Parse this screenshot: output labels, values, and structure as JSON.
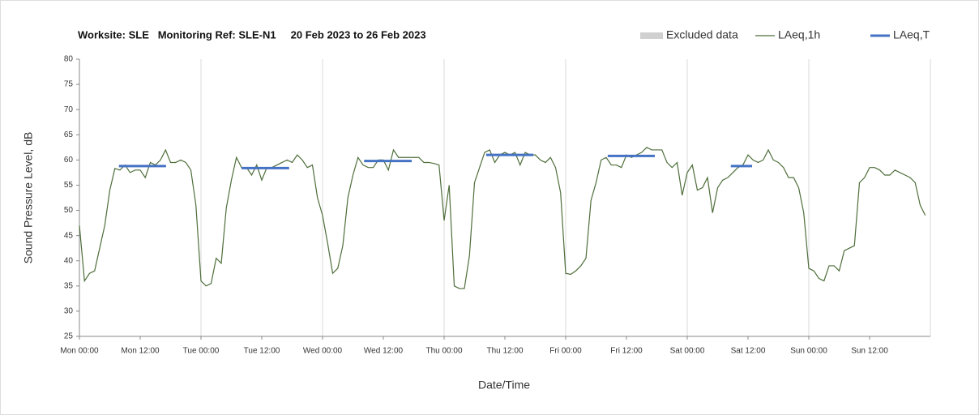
{
  "chart_data": {
    "type": "line",
    "title": "Worksite: SLE   Monitoring Ref: SLE-N1     20 Feb 2023 to 26 Feb 2023",
    "xlabel": "Date/Time",
    "ylabel": "Sound Pressure Level, dB",
    "xlim": [
      0,
      168
    ],
    "ylim": [
      25,
      80
    ],
    "yticks": [
      25,
      30,
      35,
      40,
      45,
      50,
      55,
      60,
      65,
      70,
      75,
      80
    ],
    "xticks": [
      {
        "value": 0,
        "label": "Mon 00:00"
      },
      {
        "value": 12,
        "label": "Mon 12:00"
      },
      {
        "value": 24,
        "label": "Tue 00:00"
      },
      {
        "value": 36,
        "label": "Tue 12:00"
      },
      {
        "value": 48,
        "label": "Wed 00:00"
      },
      {
        "value": 60,
        "label": "Wed 12:00"
      },
      {
        "value": 72,
        "label": "Thu 00:00"
      },
      {
        "value": 84,
        "label": "Thu 12:00"
      },
      {
        "value": 96,
        "label": "Fri 00:00"
      },
      {
        "value": 108,
        "label": "Fri 12:00"
      },
      {
        "value": 120,
        "label": "Sat 00:00"
      },
      {
        "value": 132,
        "label": "Sat 12:00"
      },
      {
        "value": 144,
        "label": "Sun 00:00"
      },
      {
        "value": 156,
        "label": "Sun 12:00"
      }
    ],
    "grid_every": 24,
    "legend": [
      {
        "name": "Excluded data",
        "color": "#d0d0d0",
        "kind": "area"
      },
      {
        "name": "LAeq,1h",
        "color": "#4e6e3a",
        "kind": "line"
      },
      {
        "name": "LAeq,T",
        "color": "#4472c4",
        "kind": "segment"
      }
    ],
    "series": [
      {
        "name": "LAeq,1h",
        "color": "#4e6e3a",
        "x": [
          0,
          1,
          2,
          3,
          4,
          5,
          6,
          7,
          8,
          9,
          10,
          11,
          12,
          13,
          14,
          15,
          16,
          17,
          18,
          19,
          20,
          21,
          22,
          23,
          24,
          25,
          26,
          27,
          28,
          29,
          30,
          31,
          32,
          33,
          34,
          35,
          36,
          37,
          38,
          39,
          40,
          41,
          42,
          43,
          44,
          45,
          46,
          47,
          48,
          49,
          50,
          51,
          52,
          53,
          54,
          55,
          56,
          57,
          58,
          59,
          60,
          61,
          62,
          63,
          64,
          65,
          66,
          67,
          68,
          69,
          70,
          71,
          72,
          73,
          74,
          75,
          76,
          77,
          78,
          79,
          80,
          81,
          82,
          83,
          84,
          85,
          86,
          87,
          88,
          89,
          90,
          91,
          92,
          93,
          94,
          95,
          96,
          97,
          98,
          99,
          100,
          101,
          102,
          103,
          104,
          105,
          106,
          107,
          108,
          109,
          110,
          111,
          112,
          113,
          114,
          115,
          116,
          117,
          118,
          119,
          120,
          121,
          122,
          123,
          124,
          125,
          126,
          127,
          128,
          129,
          130,
          131,
          132,
          133,
          134,
          135,
          136,
          137,
          138,
          139,
          140,
          141,
          142,
          143,
          144,
          145,
          146,
          147,
          148,
          149,
          150,
          151,
          152,
          153,
          154,
          155,
          156,
          157,
          158,
          159,
          160,
          161,
          162,
          163,
          164,
          165,
          166,
          167
        ],
        "values": [
          47,
          36,
          37.5,
          38,
          42.5,
          47,
          54,
          58.3,
          58,
          59,
          57.5,
          58,
          58,
          56.5,
          59.5,
          59,
          60,
          62,
          59.5,
          59.5,
          60,
          59.5,
          58,
          51,
          36,
          35,
          35.5,
          40.5,
          39.5,
          50.5,
          56,
          60.5,
          58.5,
          58.5,
          57,
          59,
          56,
          58.5,
          58.5,
          59,
          59.5,
          60,
          59.5,
          61,
          60,
          58.5,
          59,
          52.5,
          49,
          43.5,
          37.5,
          38.5,
          43,
          52.5,
          57,
          60.5,
          59,
          58.5,
          58.5,
          60,
          60,
          58,
          62,
          60.5,
          60.5,
          60.5,
          60.5,
          60.5,
          59.5,
          59.5,
          59.3,
          59,
          48,
          55,
          35,
          34.5,
          34.5,
          41,
          55.5,
          58.5,
          61.5,
          62,
          59.5,
          61,
          61.5,
          61,
          61.5,
          59,
          61.5,
          61,
          61,
          60,
          59.5,
          60.5,
          58.5,
          53.5,
          37.5,
          37.3,
          38,
          39,
          40.5,
          52,
          55.5,
          60,
          60.5,
          59,
          59,
          58.5,
          61,
          60.5,
          61,
          61.5,
          62.5,
          62,
          62,
          62,
          59.5,
          58.5,
          59.5,
          53,
          57.5,
          59,
          54,
          54.5,
          56.5,
          49.5,
          54.5,
          56,
          56.5,
          57.5,
          58.5,
          59,
          61,
          60,
          59.5,
          60,
          62,
          60,
          59.5,
          58.5,
          56.5,
          56.5,
          54.5,
          49.5,
          38.5,
          38,
          36.5,
          36,
          39,
          39,
          38,
          42,
          42.5,
          43,
          55.5,
          56.5,
          58.5,
          58.5,
          58,
          57,
          57,
          58,
          57.5,
          57,
          56.5,
          55.5,
          51,
          49
        ]
      }
    ],
    "periods": {
      "name": "LAeq,T",
      "color": "#4472c4",
      "start": [
        7.8,
        32,
        56.2,
        80.3,
        104.3,
        128.6
      ],
      "end": [
        17.1,
        41.4,
        65.6,
        89.6,
        113.6,
        132.8
      ],
      "values": [
        58.8,
        58.4,
        59.8,
        61,
        60.8,
        58.8
      ]
    }
  }
}
